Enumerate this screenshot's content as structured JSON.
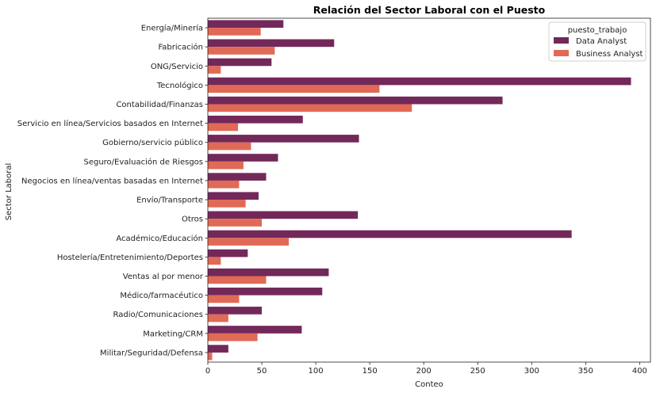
{
  "chart_data": {
    "type": "bar",
    "orientation": "horizontal",
    "title": "Relación del Sector Laboral con el Puesto",
    "xlabel": "Conteo",
    "ylabel": "Sector Laboral",
    "xlim": [
      0,
      410
    ],
    "xticks": [
      0,
      50,
      100,
      150,
      200,
      250,
      300,
      350,
      400
    ],
    "grid": false,
    "legend": {
      "title": "puesto_trabajo",
      "placement": "top-right"
    },
    "categories": [
      "Energía/Minería",
      "Fabricación",
      "ONG/Servicio",
      "Tecnológico",
      "Contabilidad/Finanzas",
      "Servicio en línea/Servicios basados en Internet",
      "Gobierno/servicio público",
      "Seguro/Evaluación de Riesgos",
      "Negocios en línea/ventas basadas en Internet",
      "Envío/Transporte",
      "Otros",
      "Académico/Educación",
      "Hostelería/Entretenimiento/Deportes",
      "Ventas al por menor",
      "Médico/farmacéutico",
      "Radio/Comunicaciones",
      "Marketing/CRM",
      "Militar/Seguridad/Defensa"
    ],
    "series": [
      {
        "name": "Data Analyst",
        "color": "#73285a",
        "values": [
          70,
          117,
          59,
          392,
          273,
          88,
          140,
          65,
          54,
          47,
          139,
          337,
          37,
          112,
          106,
          50,
          87,
          19
        ]
      },
      {
        "name": "Business Analyst",
        "color": "#e06a56",
        "values": [
          49,
          62,
          12,
          159,
          189,
          28,
          40,
          33,
          29,
          35,
          50,
          75,
          12,
          54,
          29,
          19,
          46,
          4
        ]
      }
    ]
  }
}
